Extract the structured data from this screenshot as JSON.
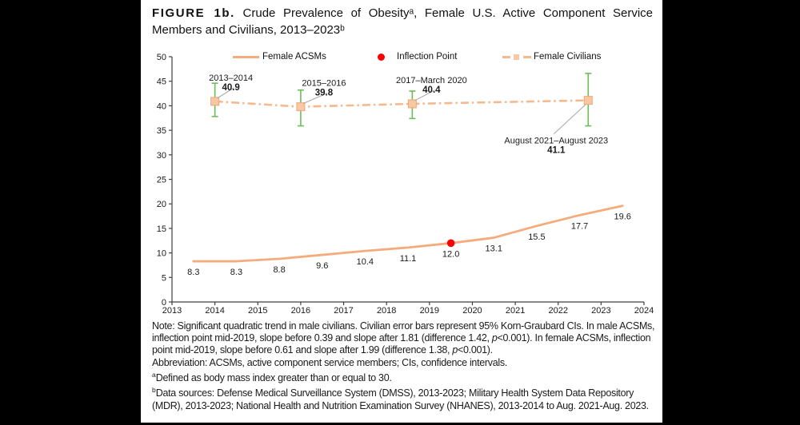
{
  "title": {
    "figure_label": "FIGURE 1b.",
    "line1_rest": " Crude Prevalence of Obesityᵃ, Female U.S. Active Component Service",
    "line2": "Members and Civilians, 2013–2023ᵇ"
  },
  "legend": [
    {
      "label": "Female ACSMs",
      "swatch": "solid-line",
      "color": "#F5AC7D"
    },
    {
      "label": "Inflection Point",
      "swatch": "red-dot",
      "color": "#FF0000"
    },
    {
      "label": "Female Civilians",
      "swatch": "dash-square-dash",
      "color": "#F4B98F"
    }
  ],
  "chart_data": {
    "type": "line",
    "title": "Crude Prevalence of Obesity, Female U.S. Active Component Service Members and Civilians, 2013-2023",
    "xlabel": "",
    "ylabel": "",
    "grid": false,
    "x_axis": {
      "min": 2013,
      "max": 2024,
      "ticks": [
        2013,
        2014,
        2015,
        2016,
        2017,
        2018,
        2019,
        2020,
        2021,
        2022,
        2023,
        2024
      ]
    },
    "y_axis": {
      "min": 0,
      "max": 50,
      "ticks": [
        0,
        5,
        10,
        15,
        20,
        25,
        30,
        35,
        40,
        45,
        50
      ]
    },
    "series": [
      {
        "name": "Female ACSMs",
        "color": "#F5AC7D",
        "line_style": "solid",
        "years": [
          2013,
          2014,
          2015,
          2016,
          2017,
          2018,
          2019,
          2020,
          2021,
          2022,
          2023
        ],
        "plot_x": [
          2013.5,
          2014.5,
          2015.5,
          2016.5,
          2017.5,
          2018.5,
          2019.5,
          2020.5,
          2021.5,
          2022.5,
          2023.5
        ],
        "values": [
          8.3,
          8.3,
          8.8,
          9.6,
          10.4,
          11.1,
          12.0,
          13.1,
          15.5,
          17.7,
          19.6
        ],
        "value_labels": [
          "8.3",
          "8.3",
          "8.8",
          "9.6",
          "10.4",
          "11.1",
          "12.0",
          "13.1",
          "15.5",
          "17.7",
          "19.6"
        ]
      },
      {
        "name": "Female Civilians",
        "color": "#F4B98F",
        "line_style": "dash-dot",
        "marker": "square",
        "marker_fill": "#F8C8A4",
        "marker_stroke": "#ECA877",
        "error_bar_color": "#6CBE59",
        "points": [
          {
            "period": "2013–2014",
            "value": 40.9,
            "value_label": "40.9",
            "plot_x": 2014,
            "ci_low": 37.8,
            "ci_high": 44.6,
            "callout": {
              "side": "above",
              "label_dx": 20
            }
          },
          {
            "period": "2015–2016",
            "value": 39.8,
            "value_label": "39.8",
            "plot_x": 2016,
            "ci_low": 35.9,
            "ci_high": 43.2,
            "callout": {
              "side": "above",
              "label_dx": 29
            }
          },
          {
            "period": "2017–March 2020",
            "value": 40.4,
            "value_label": "40.4",
            "plot_x": 2018.6,
            "ci_low": 37.4,
            "ci_high": 43.0,
            "callout": {
              "side": "above",
              "label_dx": 24
            }
          },
          {
            "period": "August 2021–August 2023",
            "value": 41.1,
            "value_label": "41.1",
            "plot_x": 2022.7,
            "ci_low": 35.9,
            "ci_high": 46.6,
            "callout": {
              "side": "below",
              "label_dx": -40
            }
          }
        ]
      }
    ],
    "inflection_point": {
      "label": "Inflection Point",
      "plot_x": 2019.5,
      "value": 12.0,
      "color": "#FF0000"
    },
    "leader_line_color": "#ABABAB",
    "axis_color": "#404040"
  },
  "notes": {
    "paragraphs": [
      {
        "segments": [
          {
            "text": "Note: Significant quadratic trend in male civilians. Civilian error bars represent 95% Korn-Graubard CIs. In male ACSMs, inflection point mid-2019, slope before 0.39 and slope after 1.81 (difference 1.42, "
          },
          {
            "text": "p",
            "italic": true
          },
          {
            "text": "<0.001). In female ACSMs, inflection point mid-2019, slope before 0.61 and slope after 1.99 (difference 1.38, "
          },
          {
            "text": "p",
            "italic": true
          },
          {
            "text": "<0.001)."
          }
        ]
      },
      {
        "segments": [
          {
            "text": "Abbreviation: ACSMs, active component service members; CIs, confidence intervals."
          }
        ]
      },
      {
        "segments": [
          {
            "text": "a",
            "sup": true
          },
          {
            "text": "Defined as body mass index greater than or equal to 30."
          }
        ]
      },
      {
        "segments": [
          {
            "text": "b",
            "sup": true
          },
          {
            "text": "Data sources: Defense Medical Surveillance System (DMSS), 2013-2023; Military Health System Data Repository (MDR), 2013-2023; National Health and Nutrition Examination Survey (NHANES), 2013-2014 to Aug. 2021-Aug. 2023."
          }
        ]
      }
    ]
  }
}
